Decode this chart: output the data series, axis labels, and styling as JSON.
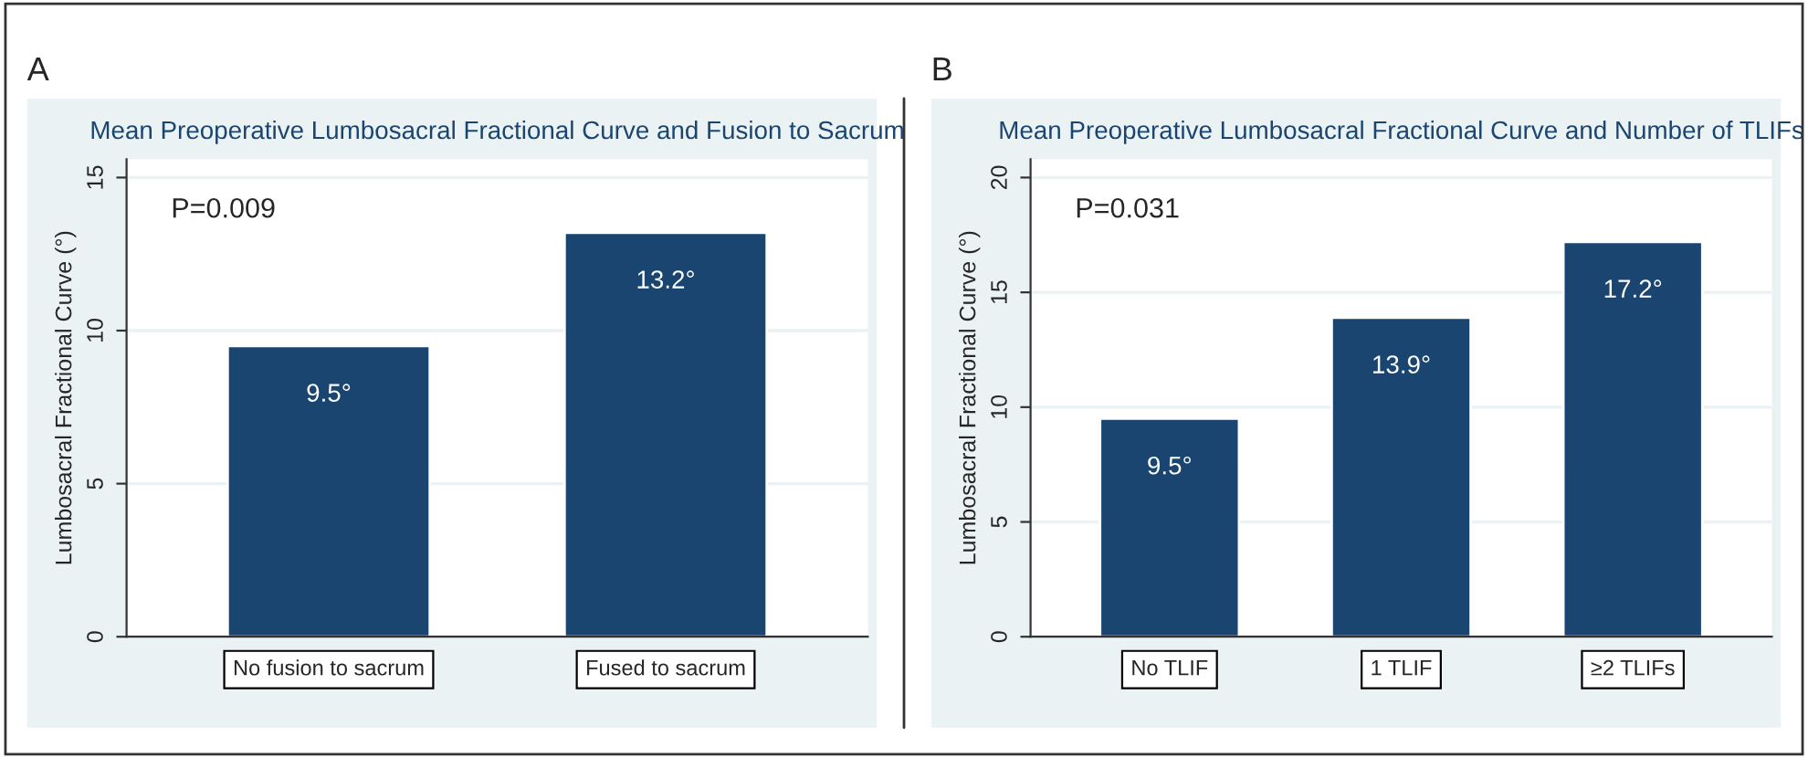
{
  "chart_data": [
    {
      "type": "bar",
      "title": "Mean Preoperative Lumbosacral Fractional Curve and Fusion to Sacrum",
      "ylabel": "Lumbosacral Fractional Curve (°)",
      "annotations": [
        "A",
        "P=0.009"
      ],
      "categories": [
        "No fusion to sacrum",
        "Fused to sacrum"
      ],
      "values": [
        9.5,
        13.2
      ],
      "value_labels": [
        "9.5°",
        "13.2°"
      ],
      "color": "#1a4570",
      "ylim": [
        0,
        15.6
      ],
      "yticks": [
        0,
        5,
        10,
        15
      ],
      "grid": "y"
    },
    {
      "type": "bar",
      "title": "Mean Preoperative Lumbosacral Fractional Curve and Number of TLIFs",
      "ylabel": "Lumbosacral Fractional Curve (°)",
      "annotations": [
        "B",
        "P=0.031"
      ],
      "categories": [
        "No TLIF",
        "1 TLIF",
        "≥2 TLIFs"
      ],
      "values": [
        9.5,
        13.9,
        17.2
      ],
      "value_labels": [
        "9.5°",
        "13.9°",
        "17.2°"
      ],
      "color": "#1a4570",
      "ylim": [
        0,
        20.8
      ],
      "yticks": [
        0,
        5,
        10,
        15,
        20
      ],
      "grid": "y"
    }
  ]
}
